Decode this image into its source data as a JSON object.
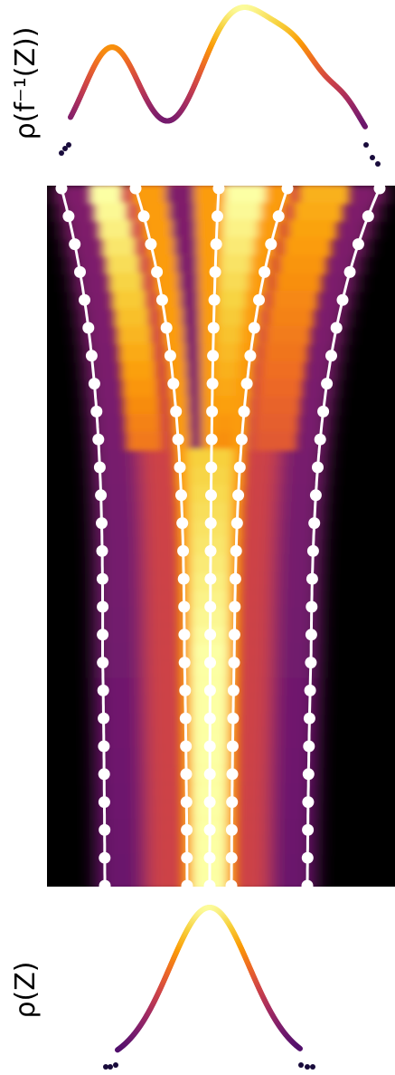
{
  "figure": {
    "top_label": "ρ(f⁻¹(Z))",
    "bottom_label": "ρ(Z)",
    "colormap": [
      "#000004",
      "#1b0c41",
      "#4a0c6b",
      "#781c6d",
      "#a52c60",
      "#cf4446",
      "#ed6925",
      "#fb9b06",
      "#f7d13d",
      "#fcffa4"
    ],
    "trajectory_color": "#ffffff",
    "background_color": "#000000"
  }
}
